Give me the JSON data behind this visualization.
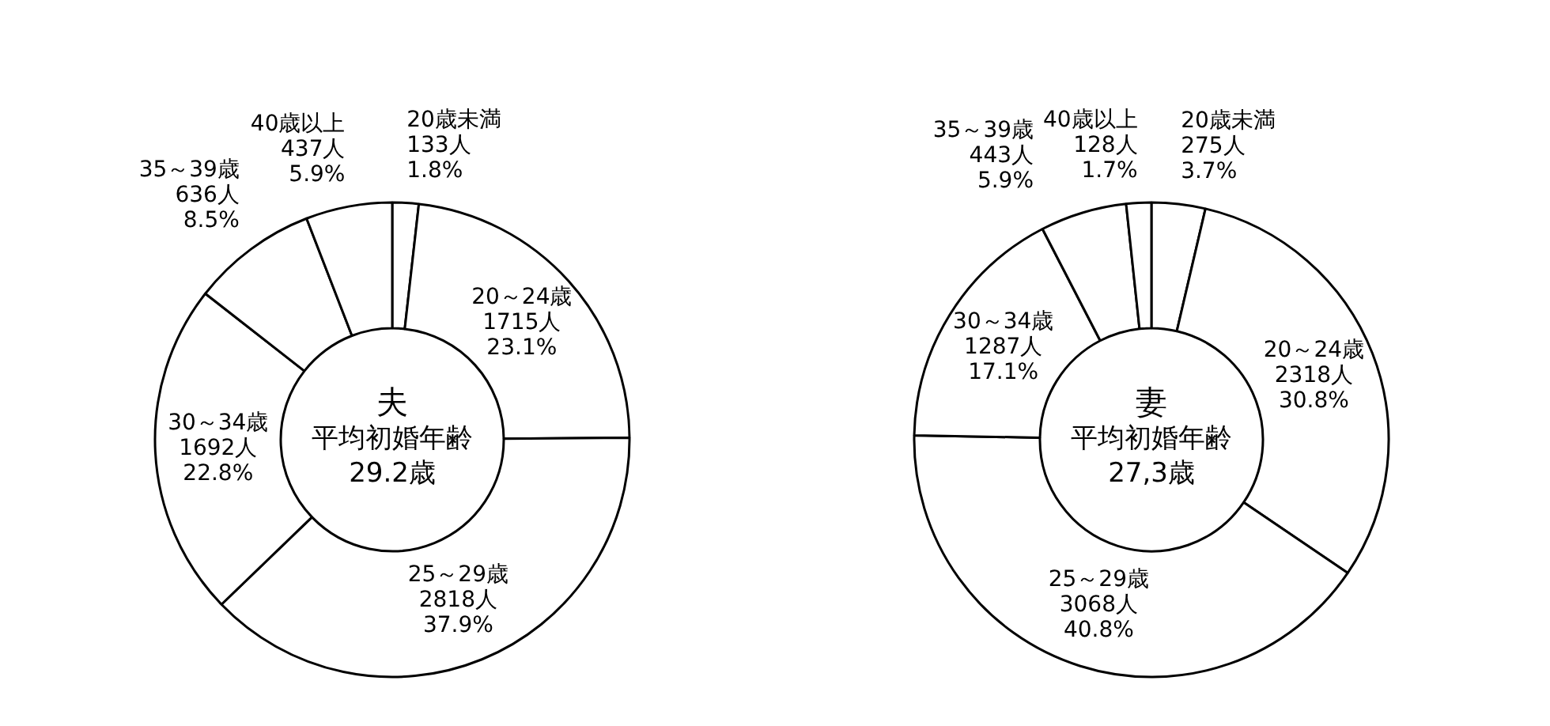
{
  "chart_data": [
    {
      "type": "donut",
      "title": "夫",
      "annotations": [
        "平均初婚年齢",
        "29.2歳"
      ],
      "categories": [
        "20歳未満",
        "20～24歳",
        "25～29歳",
        "30～34歳",
        "35～39歳",
        "40歳以上"
      ],
      "values": [
        133,
        1715,
        2818,
        1692,
        636,
        437
      ],
      "value_labels": [
        "133人 1.8%",
        "1715人 23.1%",
        "2818人 37.9%",
        "1692人 22.8%",
        "636人 8.5%",
        "437人 5.9%"
      ],
      "colors": [
        "#ffffff",
        "#ffffff",
        "#ffffff",
        "#ffffff",
        "#ffffff",
        "#ffffff"
      ]
    },
    {
      "type": "donut",
      "title": "妻",
      "annotations": [
        "平均初婚年齢",
        "27,3歳"
      ],
      "categories": [
        "20歳未満",
        "20～24歳",
        "25～29歳",
        "30～34歳",
        "35～39歳",
        "40歳以上"
      ],
      "values": [
        275,
        2318,
        3068,
        1287,
        443,
        128
      ],
      "value_labels": [
        "275人 3.7%",
        "2318人 30.8%",
        "3068人 40.8%",
        "1287人 17.1%",
        "443人 5.9%",
        "128人 1.7%"
      ],
      "colors": [
        "#ffffff",
        "#ffffff",
        "#ffffff",
        "#ffffff",
        "#ffffff",
        "#ffffff"
      ]
    }
  ]
}
